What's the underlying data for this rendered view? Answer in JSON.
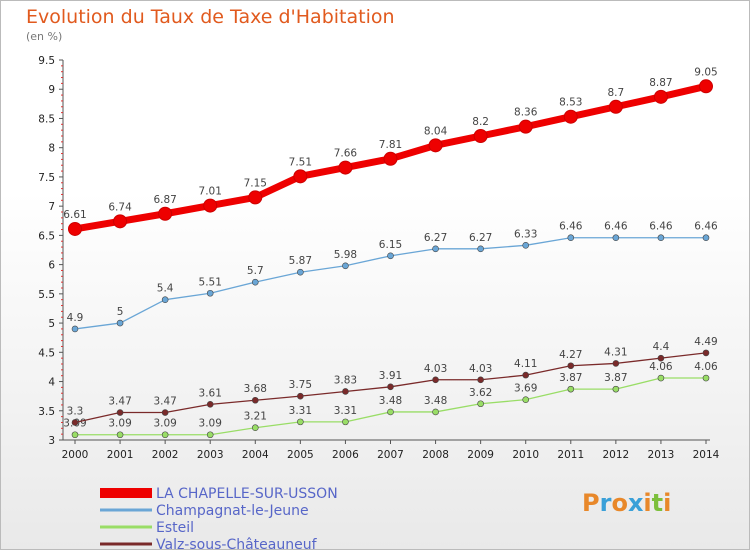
{
  "chart_data": {
    "type": "line",
    "title": "Evolution du Taux de Taxe d'Habitation",
    "subtitle": "(en %)",
    "x": [
      "2000",
      "2001",
      "2002",
      "2003",
      "2004",
      "2005",
      "2006",
      "2007",
      "2008",
      "2009",
      "2010",
      "2011",
      "2012",
      "2013",
      "2014"
    ],
    "ylim": [
      3,
      9.5
    ],
    "yticks": [
      "3",
      "3.5",
      "4",
      "4.5",
      "5",
      "5.5",
      "6",
      "6.5",
      "7",
      "7.5",
      "8",
      "8.5",
      "9",
      "9.5"
    ],
    "grid": false,
    "legend_position": "bottom-left",
    "series": [
      {
        "name": "LA CHAPELLE-SUR-USSON",
        "color": "#ee0000",
        "values": [
          6.61,
          6.74,
          6.87,
          7.01,
          7.15,
          7.51,
          7.66,
          7.81,
          8.04,
          8.2,
          8.36,
          8.53,
          8.7,
          8.87,
          9.05
        ],
        "labels": [
          "6.61",
          "6.74",
          "6.87",
          "7.01",
          "7.15",
          "7.51",
          "7.66",
          "7.81",
          "8.04",
          "8.2",
          "8.36",
          "8.53",
          "8.7",
          "8.87",
          "9.05"
        ]
      },
      {
        "name": "Champagnat-le-Jeune",
        "color": "#6aa6d6",
        "values": [
          4.9,
          5,
          5.4,
          5.51,
          5.7,
          5.87,
          5.98,
          6.15,
          6.27,
          6.27,
          6.33,
          6.46,
          6.46,
          6.46,
          6.46
        ],
        "labels": [
          "4.9",
          "5",
          "5.4",
          "5.51",
          "5.7",
          "5.87",
          "5.98",
          "6.15",
          "6.27",
          "6.27",
          "6.33",
          "6.46",
          "6.46",
          "6.46",
          "6.46"
        ]
      },
      {
        "name": "Esteil",
        "color": "#99dd66",
        "values": [
          3.09,
          3.09,
          3.09,
          3.09,
          3.21,
          3.31,
          3.31,
          3.48,
          3.48,
          3.62,
          3.69,
          3.87,
          3.87,
          4.06,
          4.06
        ],
        "labels": [
          "3.09",
          "3.09",
          "3.09",
          "3.09",
          "3.21",
          "3.31",
          "3.31",
          "3.48",
          "3.48",
          "3.62",
          "3.69",
          "3.87",
          "3.87",
          "4.06",
          "4.06"
        ]
      },
      {
        "name": "Valz-sous-Châteauneuf",
        "color": "#7a2a2a",
        "values": [
          3.3,
          3.47,
          3.47,
          3.61,
          3.68,
          3.75,
          3.83,
          3.91,
          4.03,
          4.03,
          4.11,
          4.27,
          4.31,
          4.4,
          4.49
        ],
        "labels": [
          "3.3",
          "3.47",
          "3.47",
          "3.61",
          "3.68",
          "3.75",
          "3.83",
          "3.91",
          "4.03",
          "4.03",
          "4.11",
          "4.27",
          "4.31",
          "4.4",
          "4.49"
        ]
      }
    ]
  },
  "logo": {
    "text": "Proxiti",
    "colors": [
      "#e8882a",
      "#3aa0d8",
      "#e8882a",
      "#3aa0d8",
      "#e8882a",
      "#7cbf3c",
      "#e8882a"
    ]
  }
}
